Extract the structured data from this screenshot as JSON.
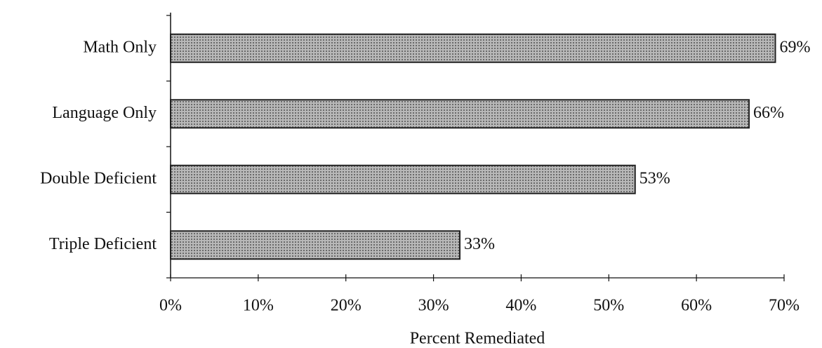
{
  "chart_data": {
    "type": "bar",
    "orientation": "horizontal",
    "categories": [
      "Math Only",
      "Language Only",
      "Double Deficient",
      "Triple Deficient"
    ],
    "values": [
      69,
      66,
      53,
      33
    ],
    "value_labels": [
      "69%",
      "66%",
      "53%",
      "33%"
    ],
    "color": "#9a9a9a",
    "xlabel": "Percent Remediated",
    "xlim": [
      0,
      70
    ],
    "xticks": [
      {
        "value": 0,
        "label": "0%"
      },
      {
        "value": 10,
        "label": "10%"
      },
      {
        "value": 20,
        "label": "20%"
      },
      {
        "value": 30,
        "label": "30%"
      },
      {
        "value": 40,
        "label": "40%"
      },
      {
        "value": 50,
        "label": "50%"
      },
      {
        "value": 60,
        "label": "60%"
      },
      {
        "value": 70,
        "label": "70%"
      }
    ]
  }
}
